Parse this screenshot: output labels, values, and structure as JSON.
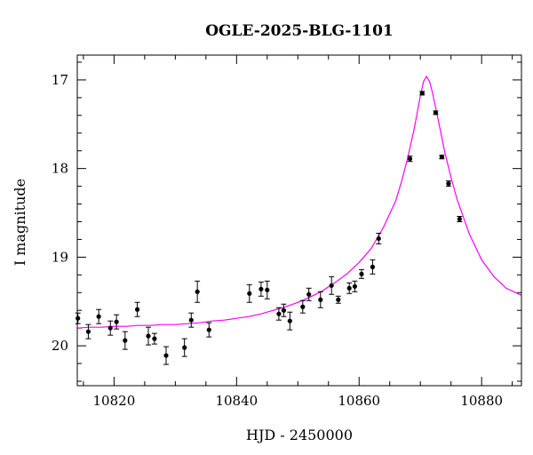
{
  "chart_data": {
    "type": "scatter",
    "title": "OGLE-2025-BLG-1101",
    "xlabel": "HJD - 2450000",
    "ylabel": "I magnitude",
    "xlim": [
      10814,
      10886.5
    ],
    "ylim": [
      20.45,
      16.72
    ],
    "y_inverted": true,
    "x_ticks": [
      10820,
      10840,
      10860,
      10880
    ],
    "y_ticks": [
      17,
      18,
      19,
      20
    ],
    "x_tick_labels": [
      "10820",
      "10840",
      "10860",
      "10880"
    ],
    "y_tick_labels": [
      "17",
      "18",
      "19",
      "20"
    ],
    "grid": false,
    "legend": "none",
    "colors": {
      "points": "#000000",
      "model": "#ff00ff"
    },
    "series": [
      {
        "kind": "points_with_errorbars",
        "x": [
          10814.1,
          10815.8,
          10817.5,
          10819.4,
          10820.4,
          10821.8,
          10823.8,
          10825.6,
          10826.6,
          10828.5,
          10831.5,
          10832.6,
          10833.6,
          10835.5,
          10842.1,
          10844.0,
          10845.0,
          10846.9,
          10847.7,
          10848.7,
          10850.8,
          10851.8,
          10853.7,
          10855.5,
          10856.6,
          10858.4,
          10859.3,
          10860.4,
          10862.2,
          10863.2,
          10868.3,
          10870.3,
          10872.5,
          10873.5,
          10874.6,
          10876.4
        ],
        "y": [
          19.69,
          19.84,
          19.67,
          19.8,
          19.73,
          19.94,
          19.59,
          19.89,
          19.92,
          20.11,
          20.02,
          19.71,
          19.39,
          19.82,
          19.41,
          19.36,
          19.37,
          19.64,
          19.6,
          19.72,
          19.56,
          19.42,
          19.48,
          19.32,
          19.48,
          19.35,
          19.33,
          19.19,
          19.11,
          18.79,
          17.89,
          17.15,
          17.37,
          17.87,
          18.17,
          18.57
        ],
        "yerr": [
          0.06,
          0.08,
          0.08,
          0.08,
          0.08,
          0.1,
          0.08,
          0.1,
          0.06,
          0.1,
          0.1,
          0.08,
          0.12,
          0.08,
          0.1,
          0.08,
          0.1,
          0.07,
          0.07,
          0.1,
          0.07,
          0.07,
          0.09,
          0.1,
          0.04,
          0.06,
          0.06,
          0.05,
          0.08,
          0.06,
          0.03,
          0.02,
          0.02,
          0.02,
          0.03,
          0.03
        ]
      },
      {
        "kind": "model_curve",
        "x": [
          10814,
          10816,
          10818,
          10820,
          10822,
          10824,
          10826,
          10828,
          10830,
          10832,
          10834,
          10836,
          10838,
          10840,
          10842,
          10844,
          10846,
          10848,
          10850,
          10852,
          10854,
          10856,
          10858,
          10860,
          10862,
          10864,
          10866,
          10867,
          10868,
          10869,
          10870,
          10870.5,
          10871,
          10871.5,
          10872,
          10873,
          10874,
          10875,
          10876,
          10878,
          10880,
          10882,
          10884,
          10886.5
        ],
        "y": [
          19.8,
          19.79,
          19.79,
          19.78,
          19.78,
          19.77,
          19.77,
          19.76,
          19.76,
          19.75,
          19.74,
          19.72,
          19.71,
          19.69,
          19.67,
          19.64,
          19.6,
          19.56,
          19.51,
          19.45,
          19.38,
          19.29,
          19.19,
          19.06,
          18.9,
          18.66,
          18.36,
          18.13,
          17.86,
          17.55,
          17.18,
          17.02,
          16.96,
          17.02,
          17.15,
          17.48,
          17.82,
          18.1,
          18.35,
          18.74,
          19.03,
          19.22,
          19.35,
          19.43
        ]
      }
    ]
  }
}
